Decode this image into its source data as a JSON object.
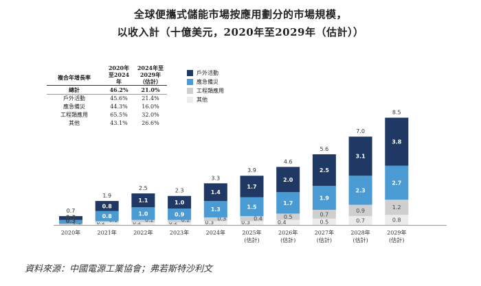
{
  "title_line1": "全球便攜式儲能市場按應用劃分的市場規模，",
  "title_line2": "以收入計（十億美元，2020年至2029年（估計））",
  "cagr_table": {
    "header_col0": "複合年增長率",
    "header_col1": "2020年至2024年",
    "header_col2": "2024年至2029年（估計）",
    "rows": [
      {
        "label": "總計",
        "v1": "46.2%",
        "v2": "21.0%"
      },
      {
        "label": "戶外活動",
        "v1": "45.6%",
        "v2": "21.4%"
      },
      {
        "label": "應急備災",
        "v1": "44.3%",
        "v2": "16.0%"
      },
      {
        "label": "工程類應用",
        "v1": "65.5%",
        "v2": "32.0%"
      },
      {
        "label": "其他",
        "v1": "43.1%",
        "v2": "26.6%"
      }
    ]
  },
  "source": "資料來源：中國電源工業協會；弗若斯特沙利文",
  "colors": {
    "outdoor": "#1f3864",
    "emergency": "#4a9ad4",
    "engineering": "#cfcfcf",
    "other": "#ececec"
  },
  "chart_data": {
    "type": "bar",
    "stacked": true,
    "categories": [
      "2020年",
      "2021年",
      "2022年",
      "2023年",
      "2024年",
      "2025年\n(估計)",
      "2026年\n(估計)",
      "2027年\n(估計)",
      "2028年\n(估計)",
      "2029年\n(估計)"
    ],
    "totals": [
      "0.7",
      "1.9",
      "2.5",
      "2.3",
      "3.3",
      "3.9",
      "4.6",
      "5.6",
      "7.0",
      "8.5"
    ],
    "total_values": [
      0.7,
      1.9,
      2.5,
      2.3,
      3.3,
      3.9,
      4.6,
      5.6,
      7.0,
      8.5
    ],
    "series": [
      {
        "name": "其他",
        "key": "other",
        "values": [
          0.0,
          0.2,
          0.2,
          0.2,
          0.3,
          0.3,
          0.4,
          0.5,
          0.7,
          0.8
        ],
        "labels": [
          "0.0",
          "0.2",
          "0.2",
          "0.2",
          "0.3",
          "0.3",
          "0.4",
          "0.5",
          "0.7",
          "0.8"
        ]
      },
      {
        "name": "工程類應用",
        "key": "engineering",
        "values": [
          0.1,
          0.1,
          0.2,
          0.2,
          0.3,
          0.4,
          0.5,
          0.7,
          0.9,
          1.2
        ],
        "labels": [
          "0.1",
          "0.1",
          "0.2",
          "0.2",
          "0.3",
          "0.4",
          "0.5",
          "0.7",
          "0.9",
          "1.2"
        ]
      },
      {
        "name": "應急備災",
        "key": "emergency",
        "values": [
          0.3,
          0.8,
          1.0,
          0.9,
          1.3,
          1.5,
          1.7,
          1.9,
          2.3,
          2.7
        ],
        "labels": [
          "0.3",
          "0.8",
          "1.0",
          "0.9",
          "1.3",
          "1.5",
          "1.7",
          "1.9",
          "2.3",
          "2.7"
        ]
      },
      {
        "name": "戶外活動",
        "key": "outdoor",
        "values": [
          0.3,
          0.8,
          1.1,
          1.0,
          1.4,
          1.7,
          2.0,
          2.5,
          3.1,
          3.8
        ],
        "labels": [
          "0.3",
          "0.8",
          "1.1",
          "1.0",
          "1.4",
          "1.7",
          "2.0",
          "2.5",
          "3.1",
          "3.8"
        ]
      }
    ],
    "legend": [
      "戶外活動",
      "應急備災",
      "工程類應用",
      "其他"
    ],
    "legend_keys": [
      "outdoor",
      "emergency",
      "engineering",
      "other"
    ],
    "ylim": [
      0,
      9
    ],
    "grid": false,
    "legend_position": "top-left"
  }
}
